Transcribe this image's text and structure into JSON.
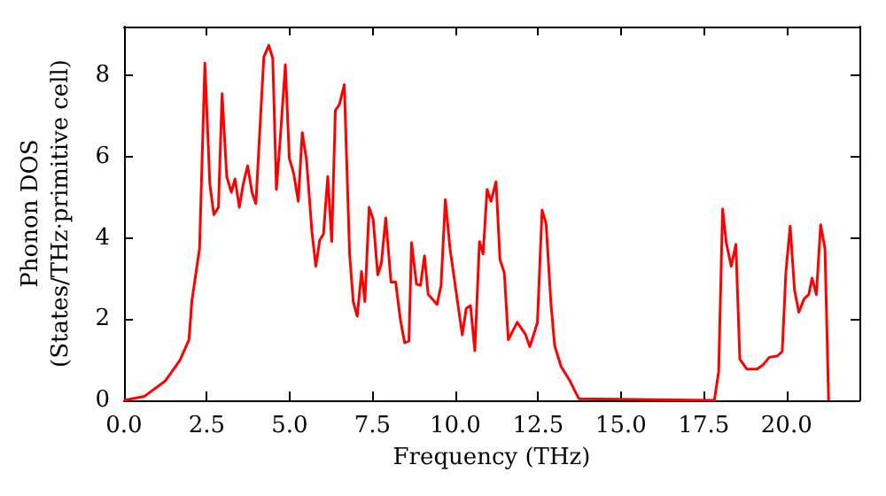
{
  "chart_data": {
    "type": "line",
    "xlabel": "Frequency (THz)",
    "ylabel": "Phonon DOS\n(States/THz·primitive cell)",
    "xlim": [
      0,
      22.2
    ],
    "ylim": [
      0,
      9.2
    ],
    "xticks": [
      {
        "value": 0,
        "label": "0.0"
      },
      {
        "value": 2.5,
        "label": "2.5"
      },
      {
        "value": 5,
        "label": "5.0"
      },
      {
        "value": 7.5,
        "label": "7.5"
      },
      {
        "value": 10,
        "label": "10.0"
      },
      {
        "value": 12.5,
        "label": "12.5"
      },
      {
        "value": 15,
        "label": "15.0"
      },
      {
        "value": 17.5,
        "label": "17.5"
      },
      {
        "value": 20,
        "label": "20.0"
      }
    ],
    "yticks": [
      0,
      2,
      4,
      6,
      8
    ],
    "grid": false,
    "marker": "none",
    "line_style": "solid",
    "series": [
      {
        "color": "#ff0000",
        "x": [
          0,
          0.62,
          1.25,
          1.69,
          1.96,
          2.05,
          2.28,
          2.44,
          2.59,
          2.71,
          2.85,
          2.96,
          3.1,
          3.24,
          3.35,
          3.48,
          3.6,
          3.73,
          3.87,
          3.98,
          4.22,
          4.37,
          4.49,
          4.6,
          4.72,
          4.87,
          4.99,
          5.12,
          5.26,
          5.38,
          5.51,
          5.67,
          5.79,
          5.91,
          6.02,
          6.15,
          6.27,
          6.38,
          6.5,
          6.65,
          6.81,
          6.92,
          7.04,
          7.17,
          7.27,
          7.4,
          7.52,
          7.66,
          7.77,
          7.9,
          8.06,
          8.2,
          8.34,
          8.47,
          8.6,
          8.68,
          8.83,
          8.95,
          9.07,
          9.18,
          9.45,
          9.57,
          9.7,
          9.84,
          10.21,
          10.33,
          10.46,
          10.59,
          10.73,
          10.84,
          10.96,
          11.08,
          11.23,
          11.35,
          11.48,
          11.6,
          11.87,
          12.12,
          12.25,
          12.48,
          12.62,
          12.74,
          12.89,
          13.0,
          13.19,
          13.46,
          13.73,
          17.82,
          17.95,
          18.07,
          18.18,
          18.33,
          18.47,
          18.59,
          18.8,
          19.11,
          19.29,
          19.48,
          19.72,
          19.87,
          19.98,
          20.11,
          20.24,
          20.37,
          20.53,
          20.67,
          20.77,
          20.9,
          21.03,
          21.16,
          21.27
        ],
        "values": [
          0,
          0.1,
          0.48,
          0.99,
          1.49,
          2.46,
          3.74,
          8.3,
          5.33,
          4.57,
          4.75,
          7.55,
          5.51,
          5.12,
          5.45,
          4.75,
          5.33,
          5.77,
          5.1,
          4.84,
          8.45,
          8.74,
          8.41,
          5.19,
          6.49,
          8.26,
          5.96,
          5.59,
          4.9,
          6.59,
          5.91,
          4.17,
          3.3,
          3.95,
          4.09,
          5.51,
          3.91,
          7.14,
          7.28,
          7.77,
          3.59,
          2.43,
          2.07,
          3.17,
          2.43,
          4.75,
          4.46,
          3.09,
          3.38,
          4.49,
          2.91,
          2.91,
          2.0,
          1.42,
          1.46,
          3.88,
          2.86,
          2.83,
          3.56,
          2.61,
          2.36,
          2.83,
          4.94,
          3.74,
          1.61,
          2.26,
          2.33,
          1.22,
          3.91,
          3.6,
          5.19,
          4.9,
          5.38,
          3.46,
          3.14,
          1.49,
          1.92,
          1.62,
          1.32,
          1.92,
          4.68,
          4.36,
          2.36,
          1.35,
          0.84,
          0.48,
          0.04,
          0,
          0.7,
          4.71,
          3.88,
          3.3,
          3.84,
          1.01,
          0.77,
          0.77,
          0.87,
          1.06,
          1.09,
          1.2,
          3.16,
          4.29,
          2.72,
          2.17,
          2.5,
          2.6,
          3.01,
          2.6,
          4.32,
          3.74,
          0
        ]
      }
    ]
  }
}
